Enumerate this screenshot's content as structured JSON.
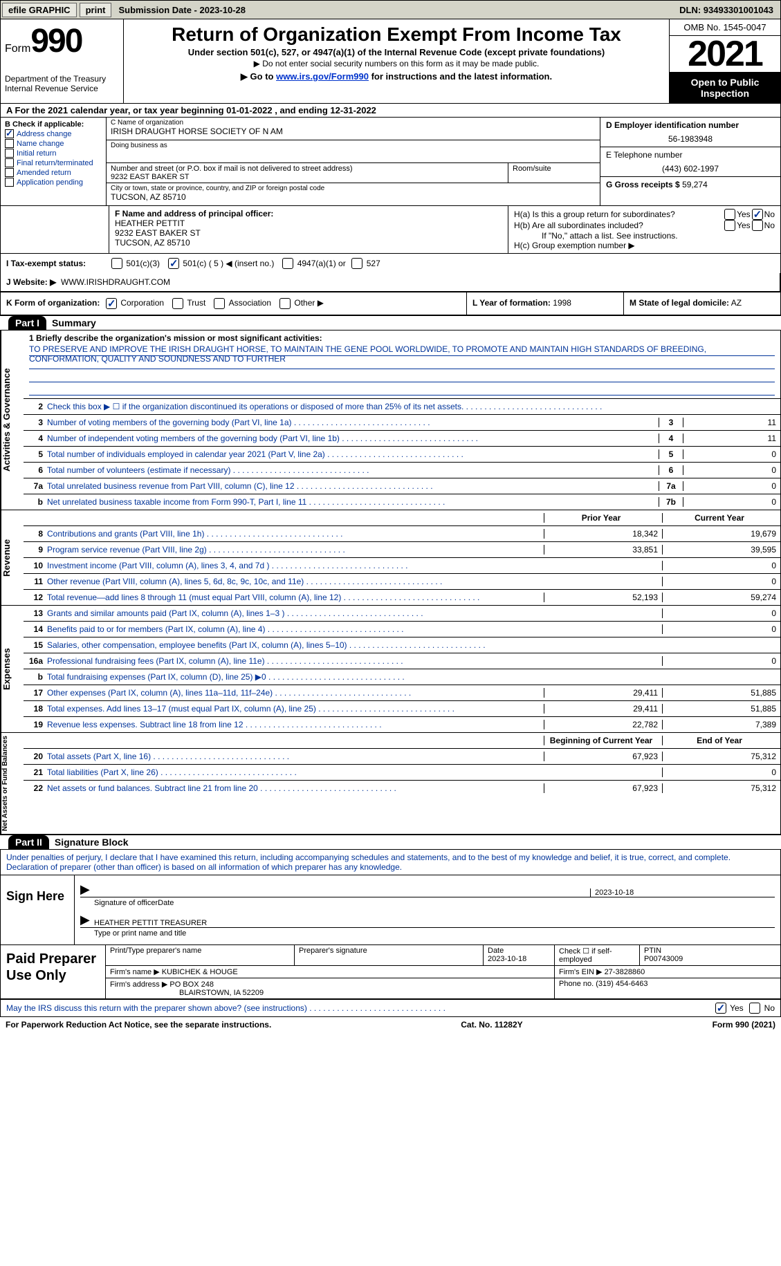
{
  "topbar": {
    "efile": "efile GRAPHIC",
    "print": "print",
    "submission": "Submission Date - 2023-10-28",
    "dln": "DLN: 93493301001043"
  },
  "header": {
    "form_word": "Form",
    "form_num": "990",
    "title": "Return of Organization Exempt From Income Tax",
    "subtitle": "Under section 501(c), 527, or 4947(a)(1) of the Internal Revenue Code (except private foundations)",
    "note1": "▶ Do not enter social security numbers on this form as it may be made public.",
    "note2_prefix": "▶ Go to ",
    "note2_link": "www.irs.gov/Form990",
    "note2_suffix": " for instructions and the latest information.",
    "dept": "Department of the Treasury\nInternal Revenue Service",
    "omb": "OMB No. 1545-0047",
    "year": "2021",
    "open": "Open to Public Inspection"
  },
  "line_a": "A For the 2021 calendar year, or tax year beginning 01-01-2022   , and ending 12-31-2022",
  "col_b": {
    "header": "B Check if applicable:",
    "items": [
      {
        "label": "Address change",
        "checked": true
      },
      {
        "label": "Name change",
        "checked": false
      },
      {
        "label": "Initial return",
        "checked": false
      },
      {
        "label": "Final return/terminated",
        "checked": false
      },
      {
        "label": "Amended return",
        "checked": false
      },
      {
        "label": "Application pending",
        "checked": false
      }
    ]
  },
  "col_c": {
    "name_lbl": "C Name of organization",
    "name_val": "IRISH DRAUGHT HORSE SOCIETY OF N AM",
    "dba_lbl": "Doing business as",
    "dba_val": "",
    "addr_lbl": "Number and street (or P.O. box if mail is not delivered to street address)",
    "room_lbl": "Room/suite",
    "addr_val": "9232 EAST BAKER ST",
    "city_lbl": "City or town, state or province, country, and ZIP or foreign postal code",
    "city_val": "TUCSON, AZ  85710"
  },
  "col_d": {
    "ein_lbl": "D Employer identification number",
    "ein_val": "56-1983948",
    "tel_lbl": "E Telephone number",
    "tel_val": "(443) 602-1997",
    "gross_lbl": "G Gross receipts $",
    "gross_val": "59,274"
  },
  "f": {
    "lbl": "F  Name and address of principal officer:",
    "name": "HEATHER PETTIT",
    "addr1": "9232 EAST BAKER ST",
    "addr2": "TUCSON, AZ  85710"
  },
  "h": {
    "a": "H(a)  Is this a group return for subordinates?",
    "b": "H(b)  Are all subordinates included?",
    "b_note": "If \"No,\" attach a list. See instructions.",
    "c": "H(c)  Group exemption number ▶",
    "yes": "Yes",
    "no": "No"
  },
  "i": {
    "lbl": "I    Tax-exempt status:",
    "opt1": "501(c)(3)",
    "opt2": "501(c) ( 5 ) ◀ (insert no.)",
    "opt3": "4947(a)(1) or",
    "opt4": "527"
  },
  "j": {
    "lbl": "J   Website: ▶",
    "val": "WWW.IRISHDRAUGHT.COM"
  },
  "k": {
    "lbl": "K Form of organization:",
    "corp": "Corporation",
    "trust": "Trust",
    "assoc": "Association",
    "other": "Other ▶"
  },
  "l": {
    "lbl": "L Year of formation:",
    "val": "1998"
  },
  "m": {
    "lbl": "M State of legal domicile:",
    "val": "AZ"
  },
  "part1": {
    "label": "Part I",
    "title": "Summary",
    "mission_lbl": "1   Briefly describe the organization's mission or most significant activities:",
    "mission_text": "TO PRESERVE AND IMPROVE THE IRISH DRAUGHT HORSE, TO MAINTAIN THE GENE POOL WORLDWIDE, TO PROMOTE AND MAINTAIN HIGH STANDARDS OF BREEDING, CONFORMATION, QUALITY AND SOUNDNESS AND TO FURTHER"
  },
  "governance": {
    "label": "Activities & Governance",
    "lines": [
      {
        "n": "2",
        "t": "Check this box ▶ ☐  if the organization discontinued its operations or disposed of more than 25% of its net assets.",
        "box": "",
        "v": ""
      },
      {
        "n": "3",
        "t": "Number of voting members of the governing body (Part VI, line 1a)",
        "box": "3",
        "v": "11"
      },
      {
        "n": "4",
        "t": "Number of independent voting members of the governing body (Part VI, line 1b)",
        "box": "4",
        "v": "11"
      },
      {
        "n": "5",
        "t": "Total number of individuals employed in calendar year 2021 (Part V, line 2a)",
        "box": "5",
        "v": "0"
      },
      {
        "n": "6",
        "t": "Total number of volunteers (estimate if necessary)",
        "box": "6",
        "v": "0"
      },
      {
        "n": "7a",
        "t": "Total unrelated business revenue from Part VIII, column (C), line 12",
        "box": "7a",
        "v": "0"
      },
      {
        "n": "b",
        "t": "Net unrelated business taxable income from Form 990-T, Part I, line 11",
        "box": "7b",
        "v": "0"
      }
    ]
  },
  "revenue": {
    "label": "Revenue",
    "header_prior": "Prior Year",
    "header_current": "Current Year",
    "lines": [
      {
        "n": "8",
        "t": "Contributions and grants (Part VIII, line 1h)",
        "p": "18,342",
        "c": "19,679"
      },
      {
        "n": "9",
        "t": "Program service revenue (Part VIII, line 2g)",
        "p": "33,851",
        "c": "39,595"
      },
      {
        "n": "10",
        "t": "Investment income (Part VIII, column (A), lines 3, 4, and 7d )",
        "p": "",
        "c": "0"
      },
      {
        "n": "11",
        "t": "Other revenue (Part VIII, column (A), lines 5, 6d, 8c, 9c, 10c, and 11e)",
        "p": "",
        "c": "0"
      },
      {
        "n": "12",
        "t": "Total revenue—add lines 8 through 11 (must equal Part VIII, column (A), line 12)",
        "p": "52,193",
        "c": "59,274"
      }
    ]
  },
  "expenses": {
    "label": "Expenses",
    "lines": [
      {
        "n": "13",
        "t": "Grants and similar amounts paid (Part IX, column (A), lines 1–3 )",
        "p": "",
        "c": "0"
      },
      {
        "n": "14",
        "t": "Benefits paid to or for members (Part IX, column (A), line 4)",
        "p": "",
        "c": "0"
      },
      {
        "n": "15",
        "t": "Salaries, other compensation, employee benefits (Part IX, column (A), lines 5–10)",
        "p": "",
        "c": ""
      },
      {
        "n": "16a",
        "t": "Professional fundraising fees (Part IX, column (A), line 11e)",
        "p": "",
        "c": "0"
      },
      {
        "n": "b",
        "t": "Total fundraising expenses (Part IX, column (D), line 25) ▶0",
        "p": "shaded",
        "c": "shaded"
      },
      {
        "n": "17",
        "t": "Other expenses (Part IX, column (A), lines 11a–11d, 11f–24e)",
        "p": "29,411",
        "c": "51,885"
      },
      {
        "n": "18",
        "t": "Total expenses. Add lines 13–17 (must equal Part IX, column (A), line 25)",
        "p": "29,411",
        "c": "51,885"
      },
      {
        "n": "19",
        "t": "Revenue less expenses. Subtract line 18 from line 12",
        "p": "22,782",
        "c": "7,389"
      }
    ]
  },
  "netassets": {
    "label": "Net Assets or Fund Balances",
    "header_begin": "Beginning of Current Year",
    "header_end": "End of Year",
    "lines": [
      {
        "n": "20",
        "t": "Total assets (Part X, line 16)",
        "p": "67,923",
        "c": "75,312"
      },
      {
        "n": "21",
        "t": "Total liabilities (Part X, line 26)",
        "p": "",
        "c": "0"
      },
      {
        "n": "22",
        "t": "Net assets or fund balances. Subtract line 21 from line 20",
        "p": "67,923",
        "c": "75,312"
      }
    ]
  },
  "part2": {
    "label": "Part II",
    "title": "Signature Block",
    "text": "Under penalties of perjury, I declare that I have examined this return, including accompanying schedules and statements, and to the best of my knowledge and belief, it is true, correct, and complete. Declaration of preparer (other than officer) is based on all information of which preparer has any knowledge."
  },
  "sign": {
    "label": "Sign Here",
    "sig_officer": "Signature of officer",
    "date_lbl": "Date",
    "date_val": "2023-10-18",
    "name": "HEATHER PETTIT TREASURER",
    "name_lbl": "Type or print name and title"
  },
  "paid": {
    "label": "Paid Preparer Use Only",
    "col1": "Print/Type preparer's name",
    "col2": "Preparer's signature",
    "col3_lbl": "Date",
    "col3_val": "2023-10-18",
    "col4": "Check ☐ if self-employed",
    "col5_lbl": "PTIN",
    "col5_val": "P00743009",
    "firm_name_lbl": "Firm's name    ▶",
    "firm_name": "KUBICHEK & HOUGE",
    "firm_ein_lbl": "Firm's EIN ▶",
    "firm_ein": "27-3828860",
    "firm_addr_lbl": "Firm's address ▶",
    "firm_addr1": "PO BOX 248",
    "firm_addr2": "BLAIRSTOWN, IA  52209",
    "phone_lbl": "Phone no.",
    "phone_val": "(319) 454-6463"
  },
  "may_irs": {
    "text": "May the IRS discuss this return with the preparer shown above? (see instructions)",
    "yes": "Yes",
    "no": "No"
  },
  "footer": {
    "left": "For Paperwork Reduction Act Notice, see the separate instructions.",
    "mid": "Cat. No. 11282Y",
    "right": "Form 990 (2021)"
  }
}
